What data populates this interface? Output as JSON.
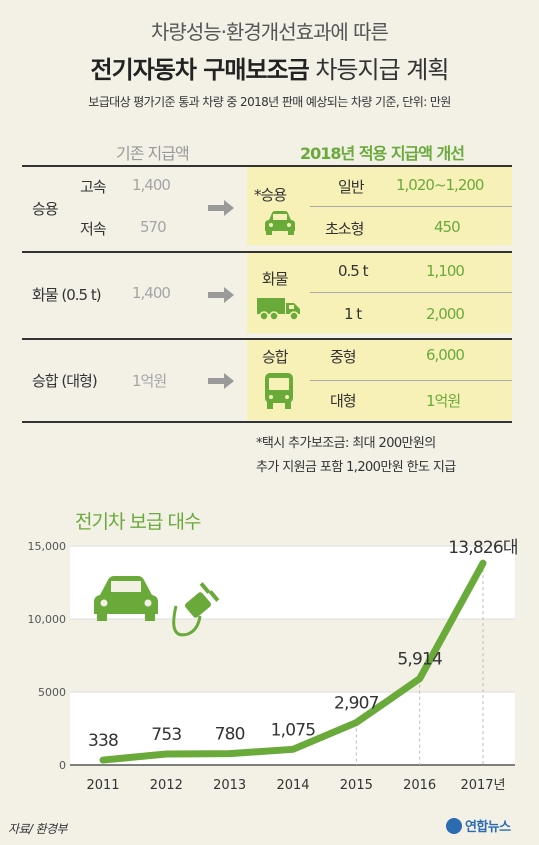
{
  "title": {
    "line1": "차량성능·환경개선효과에 따른",
    "line2_bold": "전기자동차 구매보조금",
    "line2_rest": " 차등지급 계획",
    "subtitle": "보급대상 평가기준 통과 차량 중 2018년 판매 예상되는 차량 기준, 단위: 만원"
  },
  "table": {
    "header_old": "기존 지급액",
    "header_new": "2018년 적용 지급액 개선",
    "groups": [
      {
        "name": "승용",
        "old_rows": [
          {
            "sub": "고속",
            "amount": "1,400"
          },
          {
            "sub": "저속",
            "amount": "570"
          }
        ],
        "new_label": "*승용",
        "new_icon": "car-icon",
        "new_rows": [
          {
            "sub": "일반",
            "amount": "1,020~1,200"
          },
          {
            "sub": "초소형",
            "amount": "450"
          }
        ]
      },
      {
        "name": "화물 (0.5 t)",
        "old_amount": "1,400",
        "new_label": "화물",
        "new_icon": "truck-icon",
        "new_rows": [
          {
            "sub": "0.5 t",
            "amount": "1,100"
          },
          {
            "sub": "1 t",
            "amount": "2,000"
          }
        ]
      },
      {
        "name": "승합 (대형)",
        "old_amount": "1억원",
        "new_label": "승합",
        "new_icon": "bus-icon",
        "new_rows": [
          {
            "sub": "중형",
            "amount": "6,000"
          },
          {
            "sub": "대형",
            "amount": "1억원"
          }
        ]
      }
    ],
    "note_line1": "*택시 추가보조금: 최대 200만원의",
    "note_line2": "추가 지원금 포함 1,200만원 한도 지급"
  },
  "chart_data": {
    "type": "line",
    "title": "전기차 보급 대수",
    "x": [
      "2011",
      "2012",
      "2013",
      "2014",
      "2015",
      "2016",
      "2017년"
    ],
    "values": [
      338,
      753,
      780,
      1075,
      2907,
      5914,
      13826
    ],
    "data_labels": [
      "338",
      "753",
      "780",
      "1,075",
      "2,907",
      "5,914",
      "13,826대"
    ],
    "yticks": [
      0,
      5000,
      10000,
      15000
    ],
    "ytick_labels": [
      "0",
      "5000",
      "10,000",
      "15,000"
    ],
    "ylim": [
      0,
      15000
    ],
    "line_color": "#6aaa3a",
    "grid": true,
    "icons": [
      "car-icon",
      "plug-icon"
    ]
  },
  "source": "자료/ 환경부",
  "logo": "연합뉴스",
  "colors": {
    "green": "#6aaa3a",
    "highlight": "#f7f1b8",
    "background": "#f3f1e6",
    "gray_text": "#a5a5a5"
  }
}
